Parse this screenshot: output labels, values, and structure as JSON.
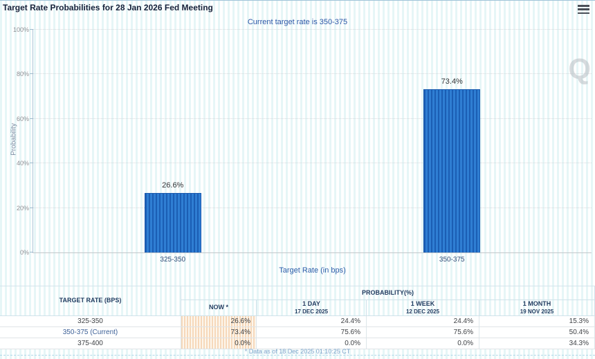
{
  "header": {
    "title": "Target Rate Probabilities for 28 Jan 2026 Fed Meeting",
    "subtitle": "Current target rate is 350-375"
  },
  "chart_data": {
    "type": "bar",
    "title": "Target Rate Probabilities for 28 Jan 2026 Fed Meeting",
    "categories": [
      "325-350",
      "350-375"
    ],
    "values": [
      26.6,
      73.4
    ],
    "xlabel": "Target Rate (in bps)",
    "ylabel": "Probability",
    "ylim": [
      0,
      100
    ],
    "yticks": [
      "0%",
      "20%",
      "40%",
      "60%",
      "80%",
      "100%"
    ],
    "grid": "horizontal-dotted",
    "legend": "none",
    "bar_color": "#2f7ed3",
    "bar_stripe_color": "#1b5eb4"
  },
  "watermark": "Q",
  "table": {
    "rate_header": "TARGET RATE (BPS)",
    "group_header": "PROBABILITY(%)",
    "columns": [
      {
        "label": "NOW *",
        "sub": ""
      },
      {
        "label": "1 DAY",
        "sub": "17 DEC 2025"
      },
      {
        "label": "1 WEEK",
        "sub": "12 DEC 2025"
      },
      {
        "label": "1 MONTH",
        "sub": "19 NOV 2025"
      }
    ],
    "rows": [
      {
        "rate": "325-350",
        "now": "26.6%",
        "day": "24.4%",
        "week": "24.4%",
        "month": "15.3%"
      },
      {
        "rate": "350-375 (Current)",
        "now": "73.4%",
        "day": "75.6%",
        "week": "75.6%",
        "month": "50.4%"
      },
      {
        "rate": "375-400",
        "now": "0.0%",
        "day": "0.0%",
        "week": "0.0%",
        "month": "34.3%"
      }
    ]
  },
  "footer": {
    "note": "* Data as of 18 Dec 2025 01:10:25 CT"
  }
}
